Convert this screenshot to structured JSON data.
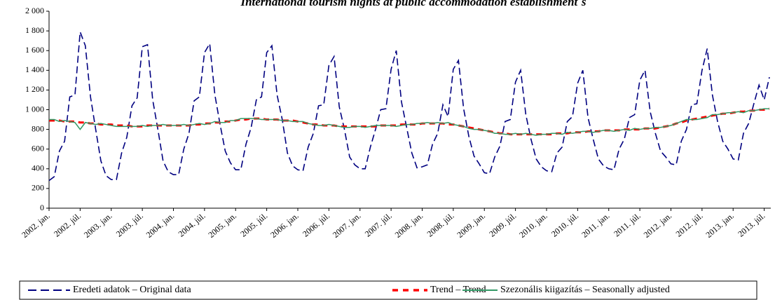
{
  "chart_data": {
    "type": "line",
    "title": "International tourism nights at public accommodation establishment´s",
    "categories": [
      "2002. jan.",
      null,
      null,
      null,
      null,
      null,
      "2002. júl.",
      null,
      null,
      null,
      null,
      null,
      "2003. jan.",
      null,
      null,
      null,
      null,
      null,
      "2003. júl.",
      null,
      null,
      null,
      null,
      null,
      "2004. jan.",
      null,
      null,
      null,
      null,
      null,
      "2004. júl.",
      null,
      null,
      null,
      null,
      null,
      "2005. jan.",
      null,
      null,
      null,
      null,
      null,
      "2005. júl.",
      null,
      null,
      null,
      null,
      null,
      "2006. jan.",
      null,
      null,
      null,
      null,
      null,
      "2006. júl.",
      null,
      null,
      null,
      null,
      null,
      "2007. jan.",
      null,
      null,
      null,
      null,
      null,
      "2007. júl.",
      null,
      null,
      null,
      null,
      null,
      "2008. jan.",
      null,
      null,
      null,
      null,
      null,
      "2008. júl.",
      null,
      null,
      null,
      null,
      null,
      "2009. jan.",
      null,
      null,
      null,
      null,
      null,
      "2009. júl.",
      null,
      null,
      null,
      null,
      null,
      "2010. jan.",
      null,
      null,
      null,
      null,
      null,
      "2010. júl.",
      null,
      null,
      null,
      null,
      null,
      "2011. jan.",
      null,
      null,
      null,
      null,
      null,
      "2011. júl.",
      null,
      null,
      null,
      null,
      null,
      "2012. jan.",
      null,
      null,
      null,
      null,
      null,
      "2012. júl.",
      null,
      null,
      null,
      null,
      null,
      "2013. jan.",
      null,
      null,
      null,
      null,
      null,
      "2013. júl.",
      null
    ],
    "series": [
      {
        "name": "Eredeti adatok – Original data",
        "color": "#000080",
        "dash": true,
        "values": [
          280,
          320,
          580,
          680,
          1130,
          1150,
          1790,
          1650,
          1130,
          800,
          480,
          330,
          290,
          290,
          560,
          720,
          1040,
          1120,
          1640,
          1660,
          1100,
          800,
          480,
          370,
          340,
          340,
          600,
          760,
          1090,
          1130,
          1580,
          1670,
          1150,
          850,
          580,
          460,
          390,
          390,
          650,
          820,
          1100,
          1130,
          1580,
          1650,
          1150,
          900,
          560,
          430,
          390,
          380,
          620,
          760,
          1040,
          1050,
          1450,
          1540,
          1030,
          800,
          520,
          440,
          400,
          400,
          620,
          800,
          1000,
          1010,
          1410,
          1600,
          1080,
          820,
          560,
          410,
          420,
          440,
          650,
          760,
          1050,
          930,
          1410,
          1500,
          1010,
          730,
          530,
          450,
          360,
          350,
          520,
          630,
          880,
          900,
          1280,
          1400,
          950,
          700,
          500,
          420,
          380,
          370,
          560,
          620,
          880,
          930,
          1270,
          1400,
          920,
          700,
          500,
          430,
          400,
          390,
          600,
          700,
          920,
          950,
          1300,
          1400,
          980,
          760,
          580,
          520,
          450,
          440,
          680,
          800,
          1050,
          1060,
          1400,
          1620,
          1150,
          880,
          680,
          600,
          500,
          490,
          760,
          860,
          1060,
          1250,
          1100,
          1330
        ]
      },
      {
        "name": "Trend – Trend",
        "color": "#ff0000",
        "dash": true,
        "values": [
          890,
          890,
          890,
          880,
          880,
          880,
          870,
          870,
          860,
          860,
          850,
          850,
          850,
          840,
          840,
          840,
          830,
          830,
          830,
          840,
          840,
          840,
          840,
          840,
          840,
          840,
          840,
          840,
          850,
          850,
          860,
          860,
          870,
          870,
          880,
          880,
          890,
          900,
          900,
          910,
          910,
          910,
          900,
          900,
          900,
          890,
          890,
          890,
          880,
          870,
          860,
          850,
          850,
          840,
          840,
          840,
          830,
          830,
          830,
          830,
          830,
          830,
          830,
          830,
          840,
          840,
          840,
          840,
          850,
          850,
          850,
          850,
          860,
          860,
          860,
          860,
          860,
          850,
          850,
          840,
          830,
          820,
          810,
          800,
          790,
          780,
          770,
          760,
          760,
          750,
          750,
          750,
          750,
          750,
          750,
          750,
          750,
          750,
          760,
          760,
          760,
          770,
          770,
          770,
          780,
          780,
          780,
          790,
          790,
          790,
          790,
          800,
          800,
          800,
          800,
          810,
          810,
          810,
          820,
          830,
          840,
          860,
          870,
          890,
          900,
          910,
          920,
          930,
          940,
          950,
          960,
          960,
          970,
          980,
          980,
          990,
          990,
          1000,
          1000,
          1010
        ]
      },
      {
        "name": "Szezonális kiigazítás – Seasonally adjusted",
        "color": "#339966",
        "dash": false,
        "values": [
          900,
          900,
          880,
          890,
          880,
          870,
          800,
          870,
          860,
          850,
          860,
          850,
          840,
          830,
          830,
          830,
          830,
          830,
          840,
          830,
          840,
          840,
          850,
          840,
          840,
          840,
          850,
          840,
          850,
          860,
          850,
          860,
          880,
          870,
          870,
          890,
          890,
          910,
          910,
          910,
          910,
          900,
          900,
          900,
          900,
          890,
          890,
          880,
          880,
          880,
          860,
          850,
          840,
          840,
          850,
          840,
          830,
          820,
          820,
          830,
          830,
          820,
          830,
          840,
          840,
          840,
          840,
          830,
          840,
          850,
          850,
          860,
          860,
          870,
          860,
          870,
          860,
          870,
          850,
          840,
          830,
          810,
          800,
          800,
          790,
          780,
          760,
          760,
          750,
          750,
          760,
          750,
          760,
          750,
          740,
          750,
          750,
          760,
          760,
          750,
          770,
          760,
          770,
          780,
          780,
          770,
          780,
          790,
          790,
          780,
          790,
          800,
          790,
          810,
          800,
          810,
          810,
          820,
          820,
          830,
          840,
          860,
          880,
          900,
          900,
          900,
          910,
          920,
          950,
          950,
          960,
          970,
          970,
          980,
          970,
          990,
          990,
          1000,
          1010,
          1010
        ]
      }
    ],
    "ylim": [
      0,
      2000
    ],
    "yticks": [
      0,
      200,
      400,
      600,
      800,
      {
        "value": 1000,
        "label": "1 000"
      },
      {
        "value": 1200,
        "label": "1 200"
      },
      {
        "value": 1400,
        "label": "1 400"
      },
      {
        "value": 1600,
        "label": "1 600"
      },
      {
        "value": 1800,
        "label": "1 800"
      },
      {
        "value": 2000,
        "label": "2 000"
      }
    ],
    "grid": false,
    "legend": "bottom"
  }
}
